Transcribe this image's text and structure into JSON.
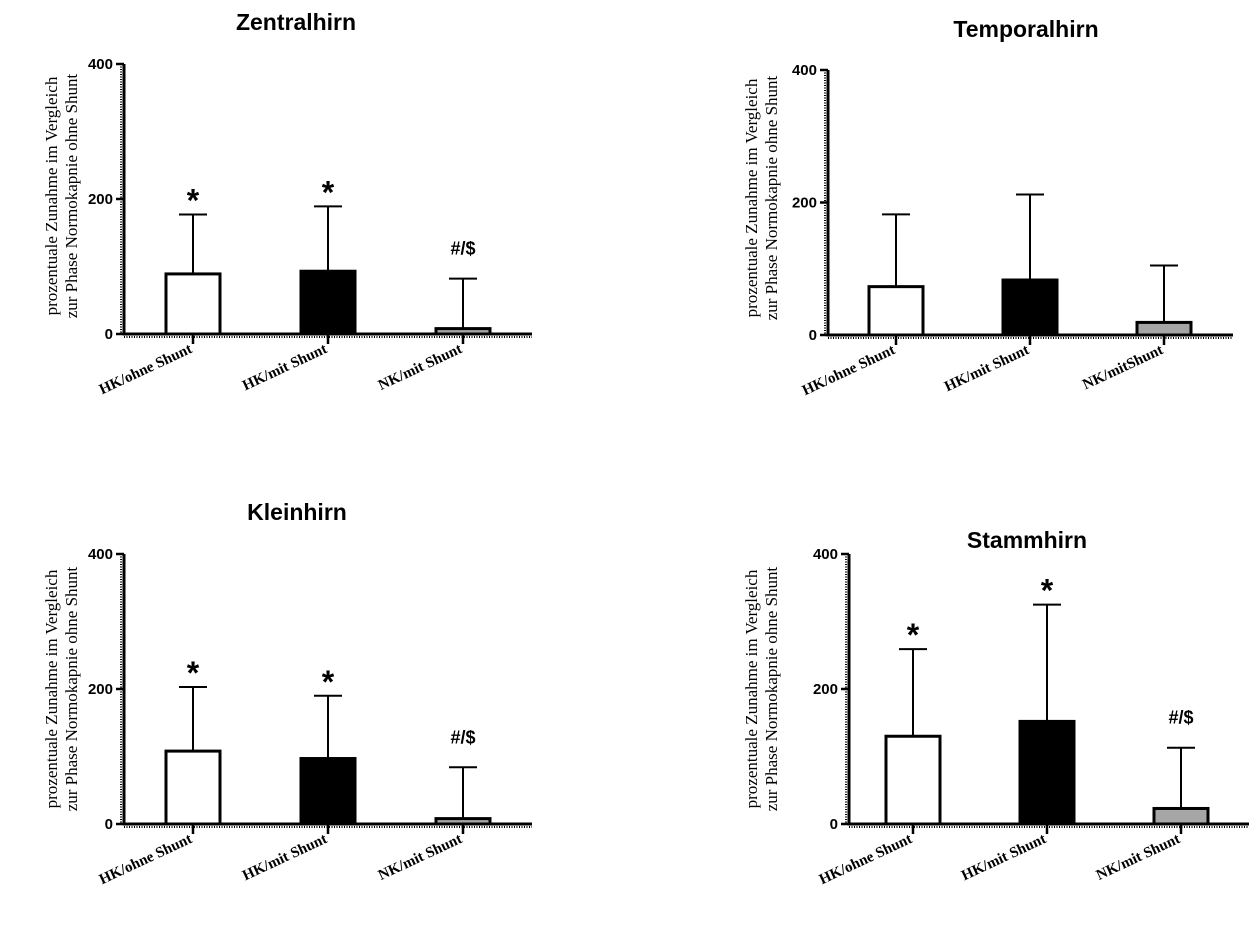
{
  "chart_data": [
    {
      "type": "bar",
      "title": "Zentralhirn",
      "ylabel": [
        "prozentuale Zunahme im Vergleich",
        "zur Phase Normokapnie ohne Shunt"
      ],
      "ylim": [
        0,
        400
      ],
      "yticks": [
        0,
        200,
        400
      ],
      "categories": [
        "HK/ohne Shunt",
        "HK/mit Shunt",
        "NK/mit Shunt"
      ],
      "values": [
        89,
        93,
        8
      ],
      "error_upper": [
        177,
        189,
        82
      ],
      "colors": [
        "#ffffff",
        "#000000",
        "#a6a6a6"
      ],
      "annotations": [
        "*",
        "*",
        "#/$"
      ]
    },
    {
      "type": "bar",
      "title": "Temporalhirn",
      "ylabel": [
        "prozentuale Zunahme im Vergleich",
        "zur Phase Normokapnie ohne Shunt"
      ],
      "ylim": [
        0,
        400
      ],
      "yticks": [
        0,
        200,
        400
      ],
      "categories": [
        "HK/ohne Shunt",
        "HK/mit Shunt",
        "NK/mitShunt"
      ],
      "values": [
        73,
        83,
        19
      ],
      "error_upper": [
        182,
        212,
        105
      ],
      "colors": [
        "#ffffff",
        "#000000",
        "#a6a6a6"
      ],
      "annotations": [
        "",
        "",
        ""
      ]
    },
    {
      "type": "bar",
      "title": "Kleinhirn",
      "ylabel": [
        "prozentuale Zunahme im Vergleich",
        "zur Phase Normokapnie ohne Shunt"
      ],
      "ylim": [
        0,
        400
      ],
      "yticks": [
        0,
        200,
        400
      ],
      "categories": [
        "HK/ohne Shunt",
        "HK/mit Shunt",
        "NK/mit Shunt"
      ],
      "values": [
        108,
        97,
        8
      ],
      "error_upper": [
        203,
        190,
        84
      ],
      "colors": [
        "#ffffff",
        "#000000",
        "#a6a6a6"
      ],
      "annotations": [
        "*",
        "*",
        "#/$"
      ]
    },
    {
      "type": "bar",
      "title": "Stammhirn",
      "ylabel": [
        "prozentuale Zunahme im Vergleich",
        "zur Phase Normokapnie ohne Shunt"
      ],
      "ylim": [
        0,
        400
      ],
      "yticks": [
        0,
        200,
        400
      ],
      "categories": [
        "HK/ohne Shunt",
        "HK/mit Shunt",
        "NK/mit Shunt"
      ],
      "values": [
        130,
        152,
        23
      ],
      "error_upper": [
        259,
        325,
        113
      ],
      "colors": [
        "#ffffff",
        "#000000",
        "#a6a6a6"
      ],
      "annotations": [
        "*",
        "*",
        "#/$"
      ]
    }
  ]
}
